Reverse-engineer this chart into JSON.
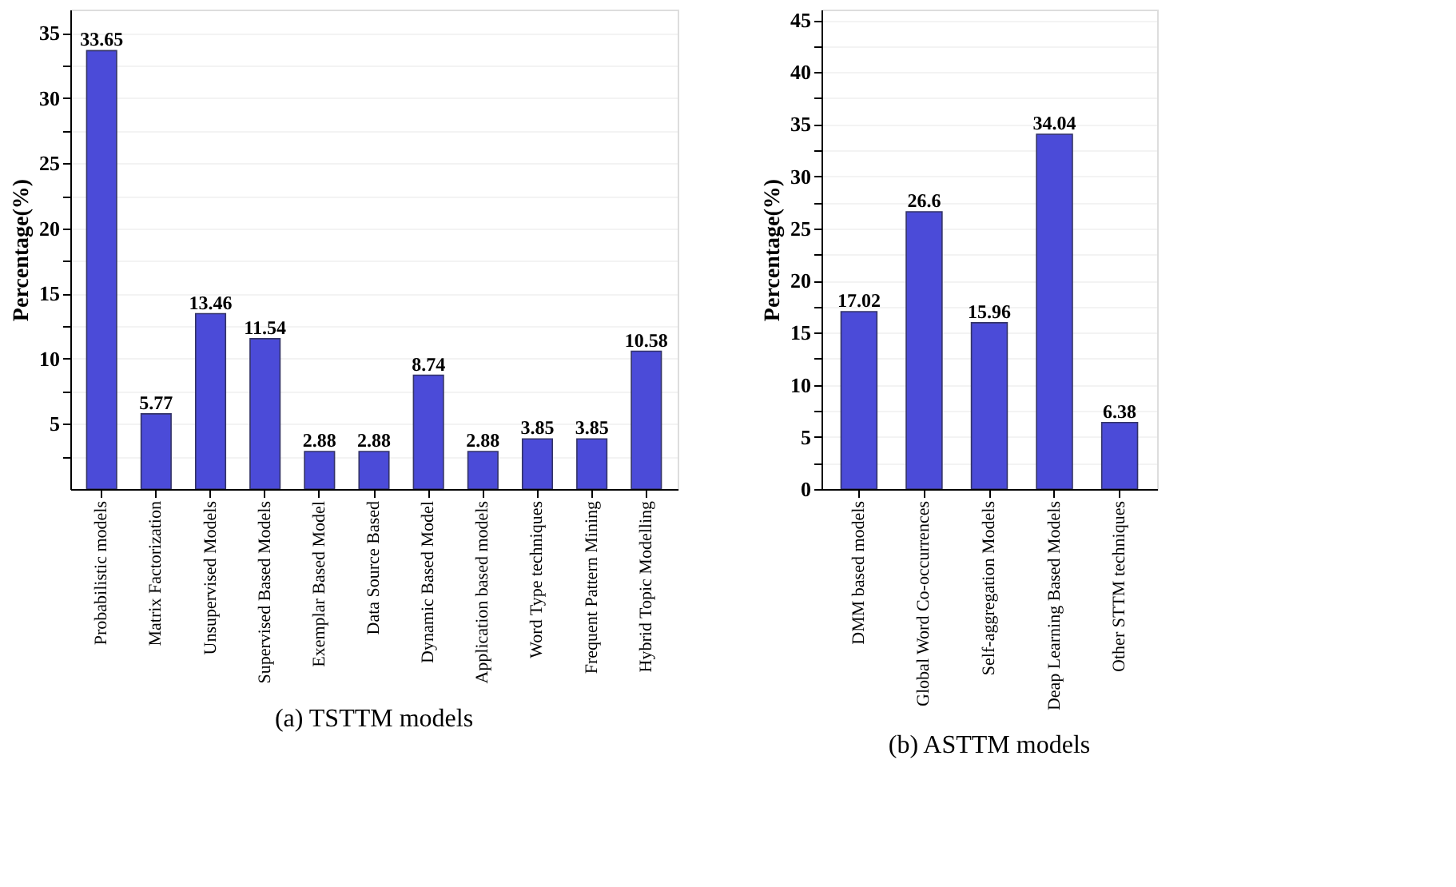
{
  "chart_data": [
    {
      "type": "bar",
      "title": "(a) TSTTM models",
      "ylabel": "Percentage(%)",
      "categories": [
        "Probabilistic models",
        "Matrix Factorization",
        "Unsupervised Models",
        "Supervised Based Models",
        "Exemplar Based Model",
        "Data Source Based",
        "Dynamic Based Model",
        "Application based models",
        "Word Type techniques",
        "Frequent Pattern Mining",
        "Hybrid Topic Modelling"
      ],
      "values": [
        33.65,
        5.77,
        13.46,
        11.54,
        2.88,
        2.88,
        8.74,
        2.88,
        3.85,
        3.85,
        10.58
      ],
      "color": "#4b4bd8",
      "data_labels": true,
      "grid": "y",
      "ylim": [
        0,
        36.8
      ],
      "yticks": [
        {
          "value": 2.5,
          "label": null
        },
        5,
        {
          "value": 7.5,
          "label": null
        },
        10,
        {
          "value": 12.5,
          "label": null
        },
        15,
        {
          "value": 17.5,
          "label": null
        },
        20,
        {
          "value": 22.5,
          "label": null
        },
        25,
        {
          "value": 27.5,
          "label": null
        },
        30,
        {
          "value": 32.5,
          "label": null
        },
        35
      ]
    },
    {
      "type": "bar",
      "title": "(b) ASTTM models",
      "ylabel": "Percentage(%)",
      "categories": [
        "DMM based models",
        "Global Word Co-occurrences",
        "Self-aggregation Models",
        "Deap Learning Based Models",
        "Other STTM techniques"
      ],
      "values": [
        17.02,
        26.6,
        15.96,
        34.04,
        6.38
      ],
      "color": "#4b4bd8",
      "data_labels": true,
      "grid": "y",
      "ylim": [
        0,
        46
      ],
      "yticks": [
        0,
        {
          "value": 2.5,
          "label": null
        },
        5,
        {
          "value": 7.5,
          "label": null
        },
        10,
        {
          "value": 12.5,
          "label": null
        },
        15,
        {
          "value": 17.5,
          "label": null
        },
        20,
        {
          "value": 22.5,
          "label": null
        },
        25,
        {
          "value": 27.5,
          "label": null
        },
        30,
        {
          "value": 32.5,
          "label": null
        },
        35,
        {
          "value": 37.5,
          "label": null
        },
        40,
        {
          "value": 42.5,
          "label": null
        },
        45
      ]
    }
  ]
}
